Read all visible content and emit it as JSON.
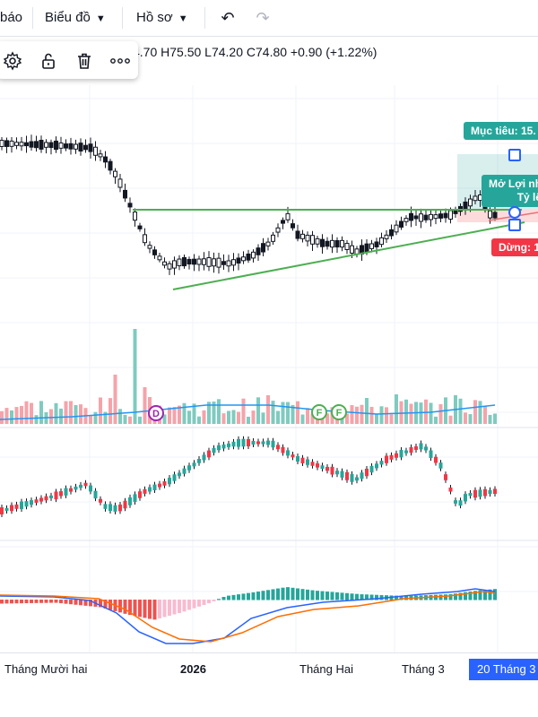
{
  "toolbar": {
    "left_label": "báo",
    "chart_menu": "Biểu đồ",
    "profile_menu": "Hồ sơ",
    "undo_icon": "undo-icon",
    "redo_icon": "redo-icon"
  },
  "ohlc_text": "4.70  H75.50  L74.20  C74.80  +0.90 (+1.22%)",
  "floating_toolbar": {
    "icons": [
      "gear-icon",
      "lock-icon",
      "trash-icon",
      "more-icon"
    ]
  },
  "position": {
    "target_label": "Mục tiêu: 15.",
    "open_label_line1": "Mở Lợi nh",
    "open_label_line2": "Tỷ lệ",
    "stop_label": "Dừng: 1",
    "colors": {
      "target": "#26a69a",
      "stop": "#f23645"
    }
  },
  "events": [
    {
      "label": "D",
      "type": "dividend"
    },
    {
      "label": "F",
      "type": "financial"
    },
    {
      "label": "F",
      "type": "financial"
    }
  ],
  "time_axis": {
    "labels": [
      "Tháng Mười hai",
      "2026",
      "Tháng Hai",
      "Tháng 3"
    ],
    "highlight": "20 Tháng 3 '"
  },
  "colors": {
    "up": "#26a69a",
    "down": "#f23645",
    "volume_up": "#7fcbbf",
    "volume_down": "#f5a3aa",
    "trendline": "#4caf50",
    "macd_line": "#2962ff",
    "signal_line": "#ff6d00"
  }
}
